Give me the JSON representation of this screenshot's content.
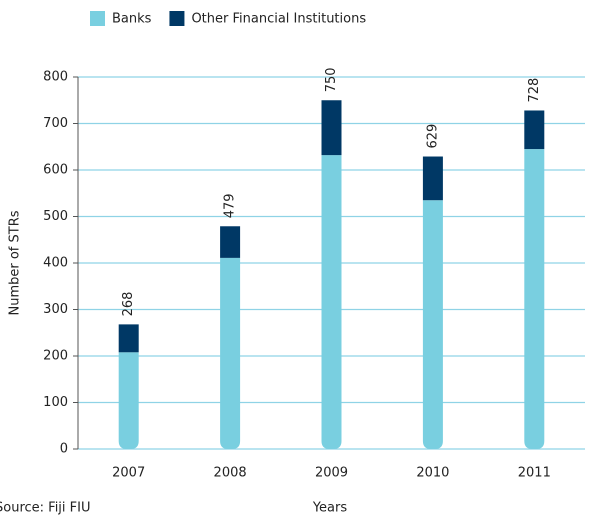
{
  "chart_data": {
    "type": "stacked-bar",
    "categories": [
      "2007",
      "2008",
      "2009",
      "2010",
      "2011"
    ],
    "series": [
      {
        "name": "Banks",
        "color": "#79cfe0",
        "values": [
          208,
          411,
          632,
          535,
          645
        ]
      },
      {
        "name": "Other Financial Institutions",
        "color": "#003865",
        "values": [
          60,
          68,
          118,
          94,
          83
        ]
      }
    ],
    "totals": [
      268,
      479,
      750,
      629,
      728
    ],
    "ylim": [
      0,
      800
    ],
    "yticks": [
      0,
      100,
      200,
      300,
      400,
      500,
      600,
      700,
      800
    ],
    "ylabel": "Number of STRs",
    "xlabel": "Years",
    "source": "Source: Fiji FIU",
    "grid": true,
    "grid_color": "#8fd3e6"
  }
}
